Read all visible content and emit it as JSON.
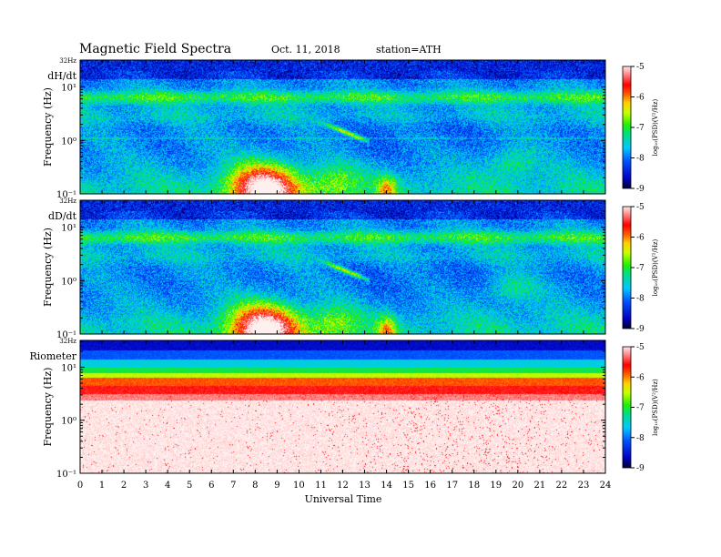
{
  "header": {
    "title": "Magnetic  Field  Spectra",
    "date": "Oct. 11, 2018",
    "station": "station=ATH"
  },
  "chart_data": {
    "type": "heatmap",
    "xlabel": "Universal Time",
    "x_ticks": [
      "0",
      "1",
      "2",
      "3",
      "4",
      "5",
      "6",
      "7",
      "8",
      "9",
      "10",
      "11",
      "12",
      "13",
      "14",
      "15",
      "16",
      "17",
      "18",
      "19",
      "20",
      "21",
      "22",
      "23",
      "24"
    ],
    "xlim": [
      0,
      24
    ],
    "panels": [
      {
        "name": "dH/dt",
        "top_label": "32Hz",
        "ylabel": "Frequency  (Hz)",
        "ylim": [
          0.1,
          32
        ],
        "y_scale": "log",
        "y_ticks": [
          "10⁻¹",
          "10⁰",
          "10¹"
        ],
        "y_tick_values": [
          0.1,
          1,
          10
        ],
        "colorbar": {
          "label": "log₁₀(PSD)(V²/Hz)",
          "ticks": [
            "-5",
            "-6",
            "-7",
            "-8",
            "-9"
          ],
          "range": [
            -9,
            -5
          ]
        }
      },
      {
        "name": "dD/dt",
        "top_label": "32Hz",
        "ylabel": "Frequency  (Hz)",
        "ylim": [
          0.1,
          32
        ],
        "y_scale": "log",
        "y_ticks": [
          "10⁻¹",
          "10⁰",
          "10¹"
        ],
        "y_tick_values": [
          0.1,
          1,
          10
        ],
        "colorbar": {
          "label": "log₁₀(PSD)(V²/Hz)",
          "ticks": [
            "-5",
            "-6",
            "-7",
            "-8",
            "-9"
          ],
          "range": [
            -9,
            -5
          ]
        }
      },
      {
        "name": "Riometer",
        "top_label": "32Hz",
        "ylabel": "Frequency  (Hz)",
        "ylim": [
          0.1,
          32
        ],
        "y_scale": "log",
        "y_ticks": [
          "10⁻¹",
          "10⁰",
          "10¹"
        ],
        "y_tick_values": [
          0.1,
          1,
          10
        ],
        "colorbar": {
          "label": "log₁₀(PSD)(V²/Hz)",
          "ticks": [
            "-5",
            "-6",
            "-7",
            "-8",
            "-9"
          ],
          "range": [
            -9,
            -5
          ]
        }
      }
    ]
  }
}
